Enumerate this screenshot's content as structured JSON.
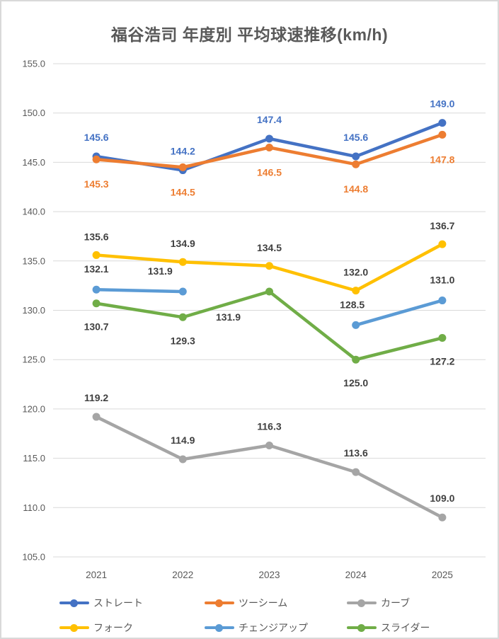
{
  "title": "福谷浩司 年度別 平均球速推移(km/h)",
  "chart_data": {
    "type": "line",
    "title": "福谷浩司 年度別 平均球速推移(km/h)",
    "x": [
      "2021",
      "2022",
      "2023",
      "2024",
      "2025"
    ],
    "xlabel": "",
    "ylabel": "",
    "ylim": [
      105.0,
      155.0
    ],
    "ytick_step": 5.0,
    "ytick_labels": [
      "105.0",
      "110.0",
      "115.0",
      "120.0",
      "125.0",
      "130.0",
      "135.0",
      "140.0",
      "145.0",
      "150.0",
      "155.0"
    ],
    "grid": true,
    "gridline_color": "#D9D9D9",
    "legend_position": "bottom",
    "axis_text_color": "#595959",
    "data_label_default_color": "#404040",
    "series": [
      {
        "name": "ストレート",
        "color": "#4472C4",
        "label_color": "#4472C4",
        "values": [
          145.6,
          144.2,
          147.4,
          145.6,
          149.0
        ]
      },
      {
        "name": "ツーシーム",
        "color": "#ED7D31",
        "label_color": "#ED7D31",
        "values": [
          145.3,
          144.5,
          146.5,
          144.8,
          147.8
        ]
      },
      {
        "name": "カーブ",
        "color": "#A5A5A5",
        "label_color": "#404040",
        "values": [
          119.2,
          114.9,
          116.3,
          113.6,
          109.0
        ]
      },
      {
        "name": "フォーク",
        "color": "#FFC000",
        "label_color": "#404040",
        "values": [
          135.6,
          134.9,
          134.5,
          132.0,
          136.7
        ]
      },
      {
        "name": "チェンジアップ",
        "color": "#5B9BD5",
        "label_color": "#404040",
        "values": [
          132.1,
          131.9,
          null,
          128.5,
          131.0
        ]
      },
      {
        "name": "スライダー",
        "color": "#70AD47",
        "label_color": "#404040",
        "values": [
          130.7,
          129.3,
          131.9,
          125.0,
          127.2
        ]
      }
    ]
  }
}
